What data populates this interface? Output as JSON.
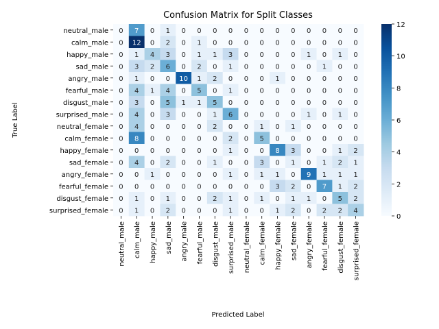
{
  "chart_data": {
    "type": "heatmap",
    "title": "Confusion Matrix for Split Classes",
    "xlabel": "Predicted Label",
    "ylabel": "True Label",
    "classes": [
      "neutral_male",
      "calm_male",
      "happy_male",
      "sad_male",
      "angry_male",
      "fearful_male",
      "disgust_male",
      "surprised_male",
      "neutral_female",
      "calm_female",
      "happy_female",
      "sad_female",
      "angry_female",
      "fearful_female",
      "disgust_female",
      "surprised_female"
    ],
    "matrix": [
      [
        0,
        7,
        0,
        1,
        0,
        0,
        0,
        0,
        0,
        0,
        0,
        0,
        0,
        0,
        0,
        0
      ],
      [
        0,
        12,
        0,
        2,
        0,
        1,
        0,
        0,
        0,
        0,
        0,
        0,
        0,
        0,
        0,
        0
      ],
      [
        0,
        1,
        4,
        3,
        0,
        1,
        1,
        3,
        0,
        0,
        0,
        0,
        1,
        0,
        1,
        0
      ],
      [
        0,
        3,
        2,
        6,
        0,
        2,
        0,
        1,
        0,
        0,
        0,
        0,
        0,
        1,
        0,
        0
      ],
      [
        0,
        1,
        0,
        0,
        10,
        1,
        2,
        0,
        0,
        0,
        1,
        0,
        0,
        0,
        0,
        0
      ],
      [
        0,
        4,
        1,
        4,
        0,
        5,
        0,
        1,
        0,
        0,
        0,
        0,
        0,
        0,
        0,
        0
      ],
      [
        0,
        3,
        0,
        5,
        1,
        1,
        5,
        0,
        0,
        0,
        0,
        0,
        0,
        0,
        0,
        0
      ],
      [
        0,
        4,
        0,
        3,
        0,
        0,
        1,
        6,
        0,
        0,
        0,
        0,
        1,
        0,
        1,
        0
      ],
      [
        0,
        4,
        0,
        0,
        0,
        0,
        2,
        0,
        0,
        1,
        0,
        1,
        0,
        0,
        0,
        0
      ],
      [
        0,
        8,
        0,
        0,
        0,
        0,
        0,
        2,
        0,
        5,
        0,
        0,
        0,
        0,
        0,
        0
      ],
      [
        0,
        0,
        0,
        0,
        0,
        0,
        0,
        1,
        0,
        0,
        8,
        3,
        0,
        0,
        1,
        2
      ],
      [
        0,
        4,
        0,
        2,
        0,
        0,
        1,
        0,
        0,
        3,
        0,
        1,
        0,
        1,
        2,
        1
      ],
      [
        0,
        0,
        1,
        0,
        0,
        0,
        0,
        1,
        0,
        1,
        1,
        0,
        9,
        1,
        1,
        1
      ],
      [
        0,
        0,
        0,
        0,
        0,
        0,
        0,
        0,
        0,
        0,
        3,
        2,
        0,
        7,
        1,
        2
      ],
      [
        0,
        1,
        0,
        1,
        0,
        0,
        2,
        1,
        0,
        1,
        0,
        1,
        1,
        0,
        5,
        2
      ],
      [
        0,
        1,
        0,
        2,
        0,
        0,
        0,
        1,
        0,
        0,
        1,
        2,
        0,
        2,
        2,
        4
      ]
    ],
    "colorbar": {
      "min": 0,
      "max": 12,
      "ticks": [
        0,
        2,
        4,
        6,
        8,
        10,
        12
      ],
      "colormap": "Blues"
    },
    "annotated": true
  }
}
